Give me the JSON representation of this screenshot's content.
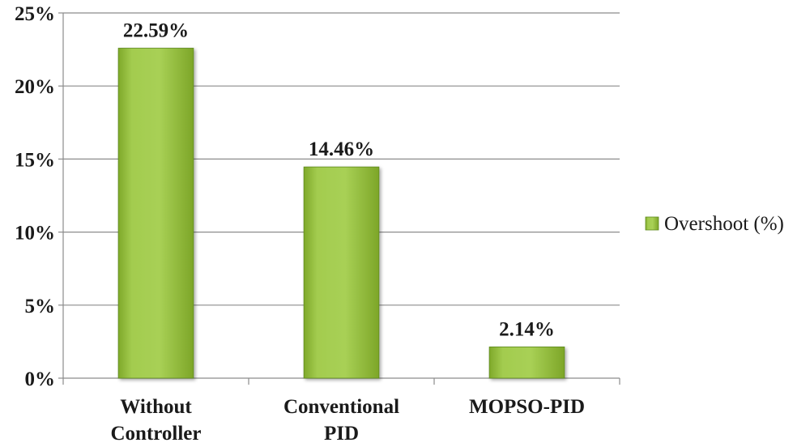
{
  "chart_data": {
    "type": "bar",
    "categories": [
      [
        "Without",
        "Controller"
      ],
      [
        "Conventional",
        "PID"
      ],
      [
        "MOPSO-PID"
      ]
    ],
    "series": [
      {
        "name": "Overshoot (%)",
        "values": [
          22.59,
          14.46,
          2.14
        ],
        "data_labels": [
          "22.59%",
          "14.46%",
          "2.14%"
        ]
      }
    ],
    "ylim": [
      0,
      25
    ],
    "yticks": [
      0,
      5,
      10,
      15,
      20,
      25
    ],
    "ytick_labels": [
      "0%",
      "5%",
      "10%",
      "15%",
      "20%",
      "25%"
    ],
    "grid": true,
    "legend_position": "right",
    "colors": {
      "bar_fill_top": "#a6cf52",
      "bar_fill_bottom": "#86b22e",
      "bar_edge": "#5f8a1e",
      "grid": "#8c8c8c",
      "axis": "#8c8c8c"
    }
  }
}
